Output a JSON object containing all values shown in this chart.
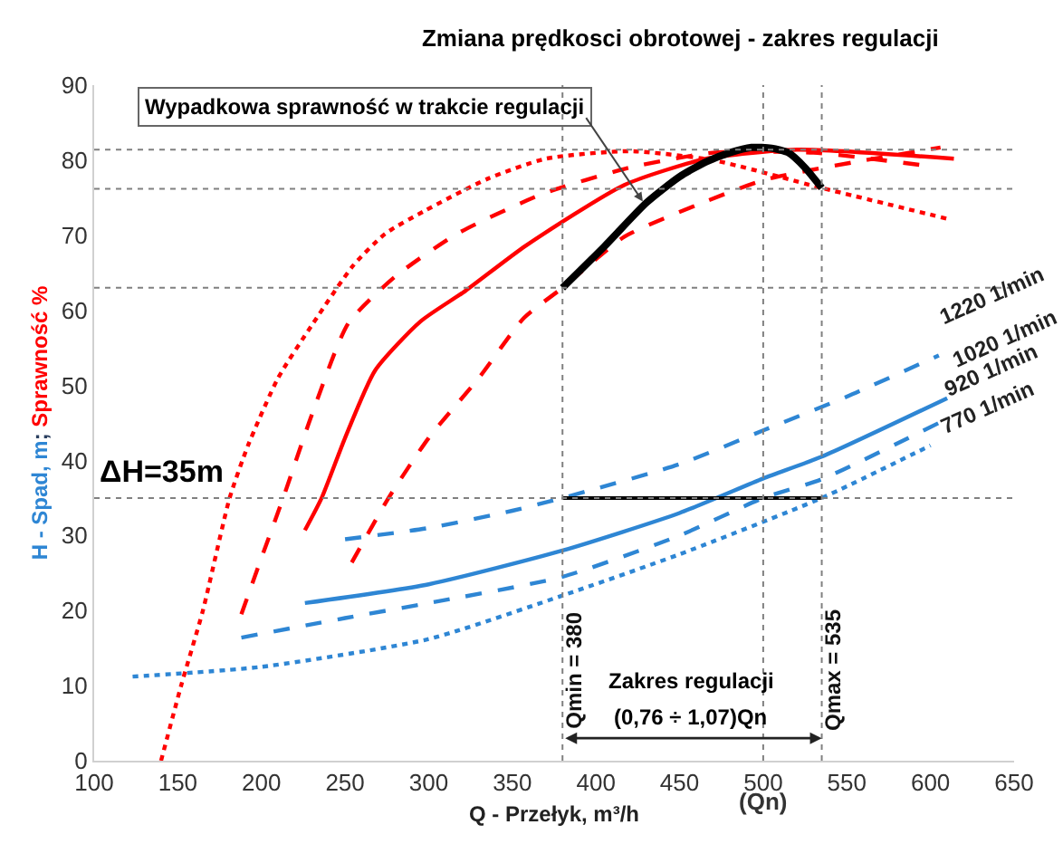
{
  "chart_data": {
    "type": "line",
    "title": "Zmiana prędkosci obrotowej - zakres regulacji",
    "xlabel": "Q - Przełyk, m³/h",
    "ylabel": "H - Spad, m; Sprawność %",
    "xlim": [
      100,
      650
    ],
    "xticks": [
      100,
      150,
      200,
      250,
      300,
      350,
      400,
      450,
      {
        "value": 500,
        "label": "500"
      },
      550,
      600,
      650
    ],
    "ylim": [
      0,
      90
    ],
    "yticks": [
      0,
      10,
      20,
      30,
      40,
      50,
      60,
      70,
      80,
      90
    ],
    "legend": false,
    "marker": "none",
    "series": [
      {
        "name": "1220 1/min",
        "color": "#2e86d4",
        "line_style": "dashed",
        "x": [
          250,
          300,
          350,
          380,
          450,
          500,
          550,
          605
        ],
        "values": [
          29.5,
          31,
          33.3,
          35,
          39.5,
          44,
          48.5,
          54
        ]
      },
      {
        "name": "1020 1/min",
        "color": "#2e86d4",
        "line_style": "solid",
        "x": [
          226,
          300,
          380,
          450,
          500,
          535,
          610
        ],
        "values": [
          21,
          23.5,
          28,
          33,
          37.6,
          40.5,
          48.3
        ]
      },
      {
        "name": "920 1/min",
        "color": "#2e86d4",
        "line_style": "dashed",
        "x": [
          188,
          250,
          300,
          380,
          450,
          500,
          535,
          605
        ],
        "values": [
          16.4,
          19,
          21,
          24.5,
          30,
          35,
          37.5,
          45
        ]
      },
      {
        "name": "770 1/min",
        "color": "#2e86d4",
        "line_style": "dotted",
        "x": [
          123,
          200,
          300,
          380,
          450,
          535,
          600
        ],
        "values": [
          11.2,
          12.5,
          16.2,
          22,
          27.5,
          35,
          42
        ]
      },
      {
        "color": "#ff0000",
        "line_style": "dotted",
        "x": [
          140,
          152,
          165,
          181,
          192,
          210,
          231,
          255,
          274,
          298,
          335,
          370,
          420,
          470,
          535,
          610
        ],
        "values": [
          0,
          10,
          20,
          35,
          42,
          51,
          58.3,
          66,
          70.2,
          73.3,
          77.5,
          80.2,
          81.2,
          80,
          76.3,
          72.2
        ]
      },
      {
        "color": "#ff0000",
        "line_style": "dashed",
        "x": [
          188,
          200,
          213,
          230,
          252,
          280,
          317,
          368,
          420,
          470,
          530,
          596
        ],
        "values": [
          19.5,
          27,
          35,
          46,
          58.3,
          64.5,
          70.2,
          75.5,
          79,
          81,
          81,
          79.3
        ]
      },
      {
        "color": "#ff0000",
        "line_style": "solid",
        "x": [
          226,
          236,
          250,
          268,
          295,
          322,
          358,
          417,
          466,
          520,
          614
        ],
        "values": [
          30.7,
          35,
          43,
          52,
          58.5,
          62.6,
          68.6,
          76.7,
          80.2,
          81.4,
          80.2
        ]
      },
      {
        "color": "#ff0000",
        "line_style": "dashed",
        "x": [
          254,
          276,
          300,
          330,
          357,
          380,
          417,
          460,
          501,
          556,
          606
        ],
        "values": [
          26.4,
          35,
          43,
          51,
          59,
          63,
          69.8,
          74,
          77.4,
          79.8,
          81.7
        ]
      },
      {
        "color": "#000000",
        "line_style": "solid",
        "x": [
          380,
          405,
          430,
          450,
          466,
          480,
          493,
          505,
          515,
          525,
          535
        ],
        "values": [
          63,
          68.5,
          74.3,
          77.8,
          79.8,
          81,
          81.7,
          81.6,
          81,
          79,
          76.3
        ]
      },
      {
        "color": "#000000",
        "line_style": "solid",
        "x": [
          380,
          535
        ],
        "values": [
          35,
          35
        ]
      }
    ],
    "ref_lines": [
      {
        "axis": "y",
        "value": 81.4,
        "color": "#808080",
        "line_style": "dotted"
      },
      {
        "axis": "y",
        "value": 76.2,
        "color": "#808080",
        "line_style": "dotted"
      },
      {
        "axis": "y",
        "value": 63,
        "color": "#808080",
        "line_style": "dotted"
      },
      {
        "axis": "y",
        "value": 35,
        "color": "#808080",
        "line_style": "dotted"
      },
      {
        "axis": "x",
        "value": 380,
        "label": "Qmin = 380",
        "color": "#808080",
        "line_style": "dotted"
      },
      {
        "axis": "x",
        "value": 500,
        "color": "#808080",
        "line_style": "dotted"
      },
      {
        "axis": "x",
        "value": 535,
        "label": "Qmax = 535",
        "color": "#808080",
        "line_style": "dotted"
      }
    ],
    "annotations": [
      {
        "text": "Wypadkowa sprawność w trakcie regulacji",
        "x": 428,
        "y": 74.5
      },
      "ΔH=35m",
      "Zakres regulacji",
      "(0,76 ÷ 1,07)Qn",
      "(Qn)"
    ]
  }
}
